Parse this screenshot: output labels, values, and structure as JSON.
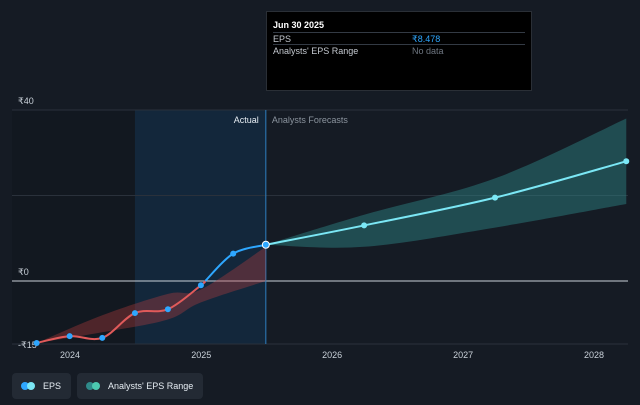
{
  "tooltip": {
    "date": "Jun 30 2025",
    "rows": [
      {
        "label": "EPS",
        "value": "₹8.478",
        "color": "#2ea7ff"
      },
      {
        "label": "Analysts' EPS Range",
        "value": "No data",
        "color": "#6e7681"
      }
    ]
  },
  "legend": [
    {
      "label": "EPS",
      "color_a": "#2ea7ff",
      "color_b": "#7be7f5"
    },
    {
      "label": "Analysts' EPS Range",
      "color_a": "#2f8a8a",
      "color_b": "#4cc9b0"
    }
  ],
  "chart_data": {
    "type": "line",
    "y_tick_labels": [
      "₹40",
      "₹0",
      "-₹15"
    ],
    "x_tick_labels": [
      "2024",
      "2025",
      "2026",
      "2027",
      "2028"
    ],
    "region_labels": {
      "actual": "Actual",
      "forecast": "Analysts Forecasts"
    },
    "ylim": [
      -15,
      40
    ],
    "grid": true,
    "divider_date": "2025-06-30",
    "past_shade_start": "2024-06-30",
    "colors": {
      "eps_negative": "#e05a5a",
      "eps_positive": "#2ea7ff",
      "forecast": "#7be7f5",
      "forecast_band": "#2f8a8a",
      "past_band": "#c0403f"
    },
    "series": [
      {
        "name": "EPS",
        "points": [
          {
            "x": "2023-09-30",
            "y": -14.5
          },
          {
            "x": "2023-12-31",
            "y": -12.9
          },
          {
            "x": "2024-03-31",
            "y": -13.3
          },
          {
            "x": "2024-06-30",
            "y": -7.5
          },
          {
            "x": "2024-09-30",
            "y": -6.6
          },
          {
            "x": "2024-12-31",
            "y": -1.0
          },
          {
            "x": "2025-03-31",
            "y": 6.4
          },
          {
            "x": "2025-06-30",
            "y": 8.478
          }
        ]
      },
      {
        "name": "EPS forecast",
        "points": [
          {
            "x": "2025-06-30",
            "y": 8.478
          },
          {
            "x": "2026-03-31",
            "y": 13.0
          },
          {
            "x": "2027-03-31",
            "y": 19.5
          },
          {
            "x": "2028-03-31",
            "y": 28.0
          }
        ]
      },
      {
        "name": "Analysts' EPS Range",
        "points": [
          {
            "x": "2025-06-30",
            "low": 8.478,
            "high": 8.478
          },
          {
            "x": "2026-03-31",
            "low": 8.0,
            "high": 15.5
          },
          {
            "x": "2027-03-31",
            "low": 12.5,
            "high": 24.0
          },
          {
            "x": "2028-03-31",
            "low": 18.0,
            "high": 38.0
          }
        ]
      },
      {
        "name": "Past estimate range",
        "points": [
          {
            "x": "2023-09-30",
            "low": -14.5,
            "high": -14.5
          },
          {
            "x": "2024-03-31",
            "low": -12.0,
            "high": -8.0
          },
          {
            "x": "2024-09-30",
            "low": -9.0,
            "high": -3.0
          },
          {
            "x": "2024-12-31",
            "low": -5.0,
            "high": -2.0
          },
          {
            "x": "2025-06-30",
            "low": 0.0,
            "high": 8.0
          }
        ]
      }
    ]
  }
}
